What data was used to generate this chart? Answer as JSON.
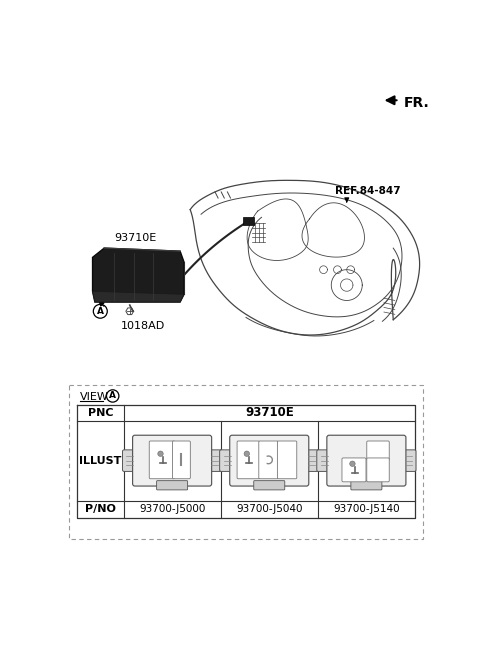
{
  "bg_color": "#ffffff",
  "fr_label": "FR.",
  "ref_label": "REF.84-847",
  "part_93710E": "93710E",
  "part_1018AD": "1018AD",
  "view_label": "VIEW",
  "pnc_label": "PNC",
  "pnc_value": "93710E",
  "illust_label": "ILLUST",
  "pno_label": "P/NO",
  "pno_values": [
    "93700-J5000",
    "93700-J5040",
    "93700-J5140"
  ],
  "text_color": "#000000",
  "line_color": "#444444"
}
